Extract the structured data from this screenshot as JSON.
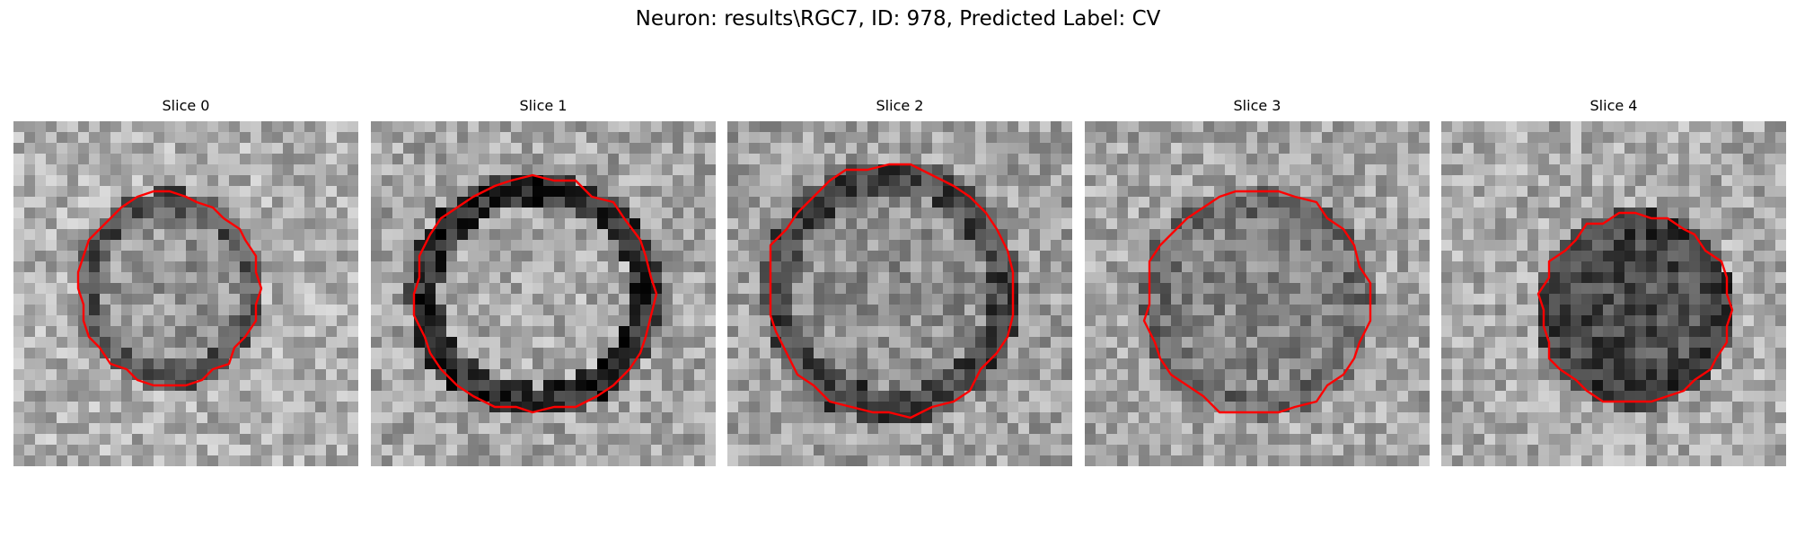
{
  "figure": {
    "title": "Neuron: results\\RGC7, ID: 978, Predicted Label: CV"
  },
  "panels": [
    {
      "title": "Slice 0",
      "contour_color": "#ff0000"
    },
    {
      "title": "Slice 1",
      "contour_color": "#ff0000"
    },
    {
      "title": "Slice 2",
      "contour_color": "#ff0000"
    },
    {
      "title": "Slice 3",
      "contour_color": "#ff0000"
    },
    {
      "title": "Slice 4",
      "contour_color": "#ff0000"
    }
  ]
}
